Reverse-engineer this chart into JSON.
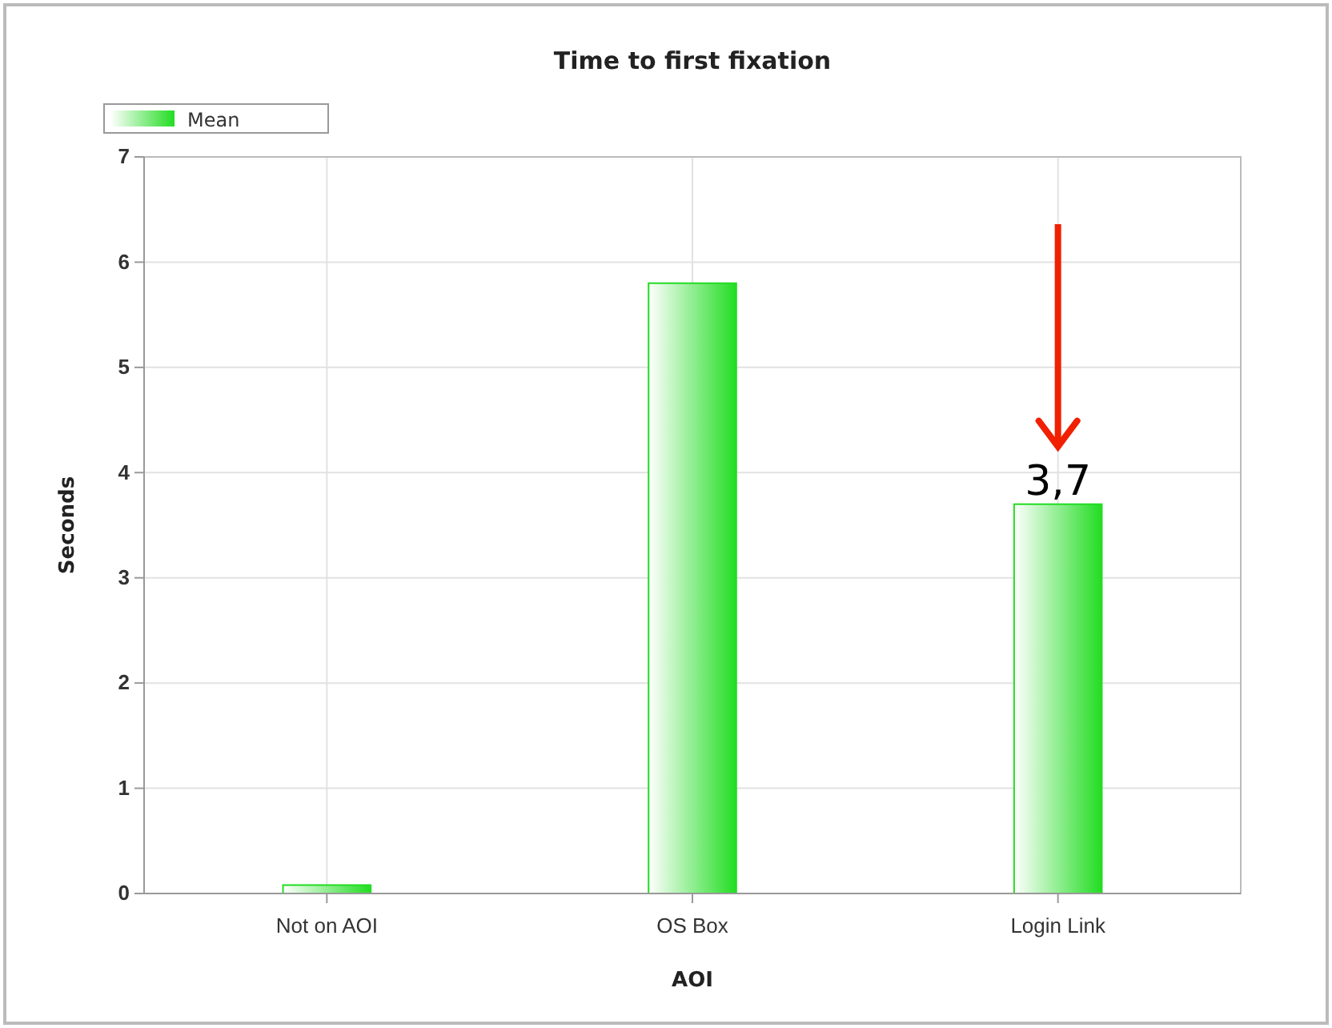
{
  "chart_data": {
    "type": "bar",
    "title": "Time to first fixation",
    "xlabel": "AOI",
    "ylabel": "Seconds",
    "categories": [
      "Not on AOI",
      "OS Box",
      "Login Link"
    ],
    "series": [
      {
        "name": "Mean",
        "color": "#22dd22",
        "values": [
          0.08,
          5.8,
          3.7
        ],
        "value_labels": [
          null,
          null,
          "3,7"
        ]
      }
    ],
    "ylim": [
      0,
      7
    ],
    "yticks": [
      0,
      1,
      2,
      3,
      4,
      5,
      6,
      7
    ],
    "grid": true,
    "legend": "top left"
  }
}
